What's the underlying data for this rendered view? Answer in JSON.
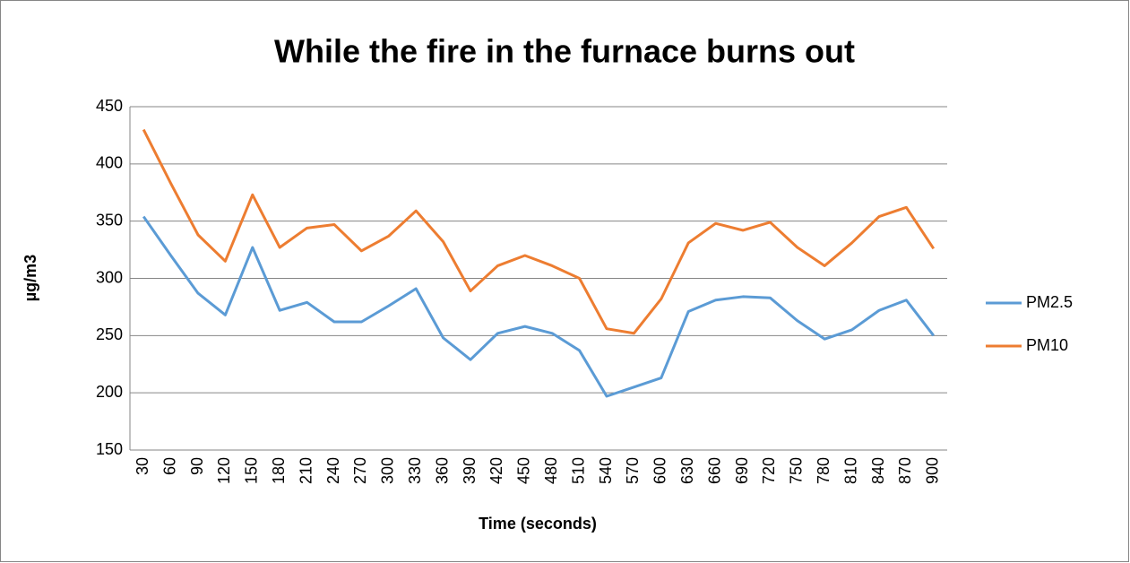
{
  "chart_data": {
    "type": "line",
    "title": "While the fire in the furnace burns out",
    "x_label": "Time (seconds)",
    "y_label": "µg/m3",
    "categories": [
      30,
      60,
      90,
      120,
      150,
      180,
      210,
      240,
      270,
      300,
      330,
      360,
      390,
      420,
      450,
      480,
      510,
      540,
      570,
      600,
      630,
      660,
      690,
      720,
      750,
      780,
      810,
      840,
      870,
      900
    ],
    "series": [
      {
        "name": "PM2.5",
        "color": "#5b9bd5",
        "values": [
          354,
          320,
          287,
          268,
          327,
          272,
          279,
          262,
          262,
          276,
          291,
          248,
          229,
          252,
          258,
          252,
          237,
          197,
          205,
          213,
          271,
          281,
          284,
          283,
          263,
          247,
          255,
          272,
          281,
          250
        ]
      },
      {
        "name": "PM10",
        "color": "#ed7d31",
        "values": [
          430,
          383,
          338,
          315,
          373,
          327,
          344,
          347,
          324,
          337,
          359,
          332,
          289,
          311,
          320,
          311,
          300,
          256,
          252,
          282,
          331,
          348,
          342,
          349,
          327,
          311,
          331,
          354,
          362,
          326
        ]
      }
    ],
    "ylim": [
      150,
      450
    ],
    "yticks": [
      150,
      200,
      250,
      300,
      350,
      400,
      450
    ],
    "grid": true,
    "legend": "right"
  }
}
